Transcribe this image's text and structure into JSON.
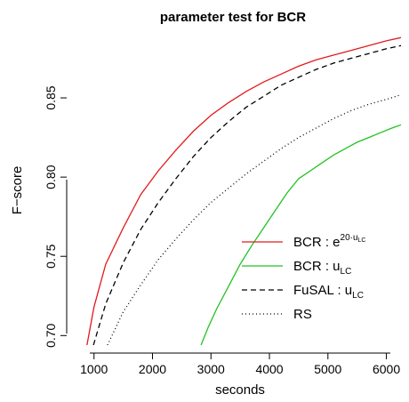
{
  "chart_data": {
    "type": "line",
    "title": "parameter test for BCR",
    "xlabel": "seconds",
    "ylabel": "F−score",
    "xlim": [
      700,
      6250
    ],
    "ylim": [
      0.694,
      0.891
    ],
    "x_ticks": [
      1000,
      2000,
      3000,
      4000,
      5000,
      6000
    ],
    "x_tick_labels": [
      "1000",
      "2000",
      "3000",
      "4000",
      "5000",
      "6000"
    ],
    "y_ticks": [
      0.7,
      0.75,
      0.8,
      0.85
    ],
    "y_tick_labels": [
      "0.70",
      "0.75",
      "0.80",
      "0.85"
    ],
    "grid": false,
    "legend_position": "bottom-right",
    "series": [
      {
        "name": "BCR : e^{20·u_LC}",
        "legend": {
          "main": "BCR : e",
          "superscript_pre": "20·u",
          "superscript_sub": "LC"
        },
        "color": "#e31a1c",
        "dash": "solid",
        "x": [
          880,
          1000,
          1200,
          1500,
          1800,
          2100,
          2400,
          2700,
          3000,
          3300,
          3600,
          3900,
          4200,
          4500,
          4800,
          5100,
          5400,
          5700,
          6000,
          6250
        ],
        "y": [
          0.694,
          0.718,
          0.745,
          0.768,
          0.789,
          0.804,
          0.817,
          0.829,
          0.839,
          0.847,
          0.854,
          0.86,
          0.865,
          0.87,
          0.874,
          0.877,
          0.88,
          0.883,
          0.886,
          0.888
        ]
      },
      {
        "name": "BCR : u_LC",
        "legend": {
          "main": "BCR : u",
          "sub": "LC"
        },
        "color": "#22c222",
        "dash": "solid",
        "x": [
          2830,
          2950,
          3100,
          3300,
          3500,
          3700,
          3900,
          4100,
          4300,
          4500,
          4700,
          4900,
          5100,
          5300,
          5500,
          5700,
          5900,
          6100,
          6250
        ],
        "y": [
          0.694,
          0.705,
          0.717,
          0.731,
          0.745,
          0.757,
          0.768,
          0.779,
          0.79,
          0.799,
          0.804,
          0.809,
          0.814,
          0.818,
          0.822,
          0.825,
          0.828,
          0.831,
          0.833
        ]
      },
      {
        "name": "FuSAL : u_LC",
        "legend": {
          "main": "FuSAL : u",
          "sub": "LC"
        },
        "color": "#000000",
        "dash": "dashed",
        "x": [
          990,
          1200,
          1500,
          1800,
          2100,
          2400,
          2700,
          3000,
          3300,
          3600,
          3900,
          4200,
          4500,
          4800,
          5100,
          5400,
          5700,
          6000,
          6250
        ],
        "y": [
          0.694,
          0.72,
          0.746,
          0.767,
          0.784,
          0.799,
          0.813,
          0.825,
          0.835,
          0.844,
          0.851,
          0.858,
          0.863,
          0.868,
          0.872,
          0.875,
          0.878,
          0.881,
          0.883
        ]
      },
      {
        "name": "RS",
        "legend": {
          "main": "RS"
        },
        "color": "#000000",
        "dash": "dotted",
        "x": [
          1230,
          1500,
          1800,
          2100,
          2400,
          2700,
          3000,
          3300,
          3600,
          3900,
          4200,
          4500,
          4800,
          5100,
          5400,
          5700,
          6000,
          6250
        ],
        "y": [
          0.694,
          0.715,
          0.732,
          0.748,
          0.761,
          0.773,
          0.784,
          0.793,
          0.802,
          0.81,
          0.818,
          0.825,
          0.831,
          0.837,
          0.842,
          0.846,
          0.849,
          0.852
        ]
      }
    ]
  }
}
